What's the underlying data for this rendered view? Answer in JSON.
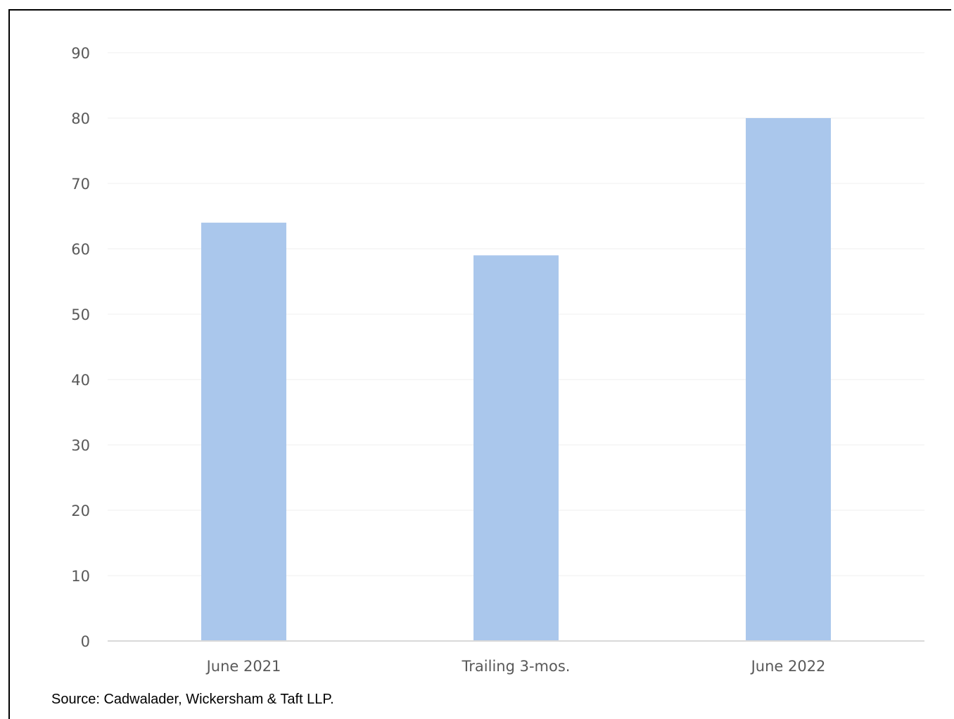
{
  "chart_data": {
    "type": "bar",
    "categories": [
      "June 2021",
      "Trailing 3-mos.",
      "June 2022"
    ],
    "values": [
      64,
      59,
      80
    ],
    "ylim": [
      0,
      90
    ],
    "yticks": [
      0,
      10,
      20,
      30,
      40,
      50,
      60,
      70,
      80,
      90
    ],
    "grid": true,
    "legend": "none",
    "bar_color": "#aac7ec",
    "grid_color": "#efefef",
    "axis_color": "#d9d9d9",
    "tick_label_color": "#595959"
  },
  "source_note": "Source: Cadwalader, Wickersham & Taft LLP."
}
